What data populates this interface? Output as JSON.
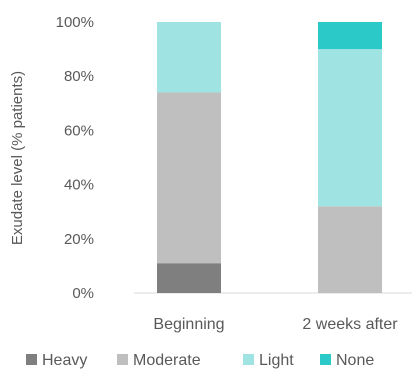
{
  "chart_data": {
    "type": "bar",
    "stacked": true,
    "title": "",
    "xlabel": "",
    "ylabel": "Exudate level (% patients)",
    "ylim": [
      0,
      100
    ],
    "yticks": [
      "0%",
      "20%",
      "40%",
      "60%",
      "80%",
      "100%"
    ],
    "grid": false,
    "legend_position": "bottom",
    "categories": [
      "Beginning",
      "2 weeks after"
    ],
    "series": [
      {
        "name": "Heavy",
        "color": "#7f7f7f",
        "values": [
          11,
          0
        ]
      },
      {
        "name": "Moderate",
        "color": "#bfbfbf",
        "values": [
          63,
          32
        ]
      },
      {
        "name": "Light",
        "color": "#9fe3e3",
        "values": [
          26,
          58
        ]
      },
      {
        "name": "None",
        "color": "#2cc9c9",
        "values": [
          0,
          10
        ]
      }
    ]
  }
}
